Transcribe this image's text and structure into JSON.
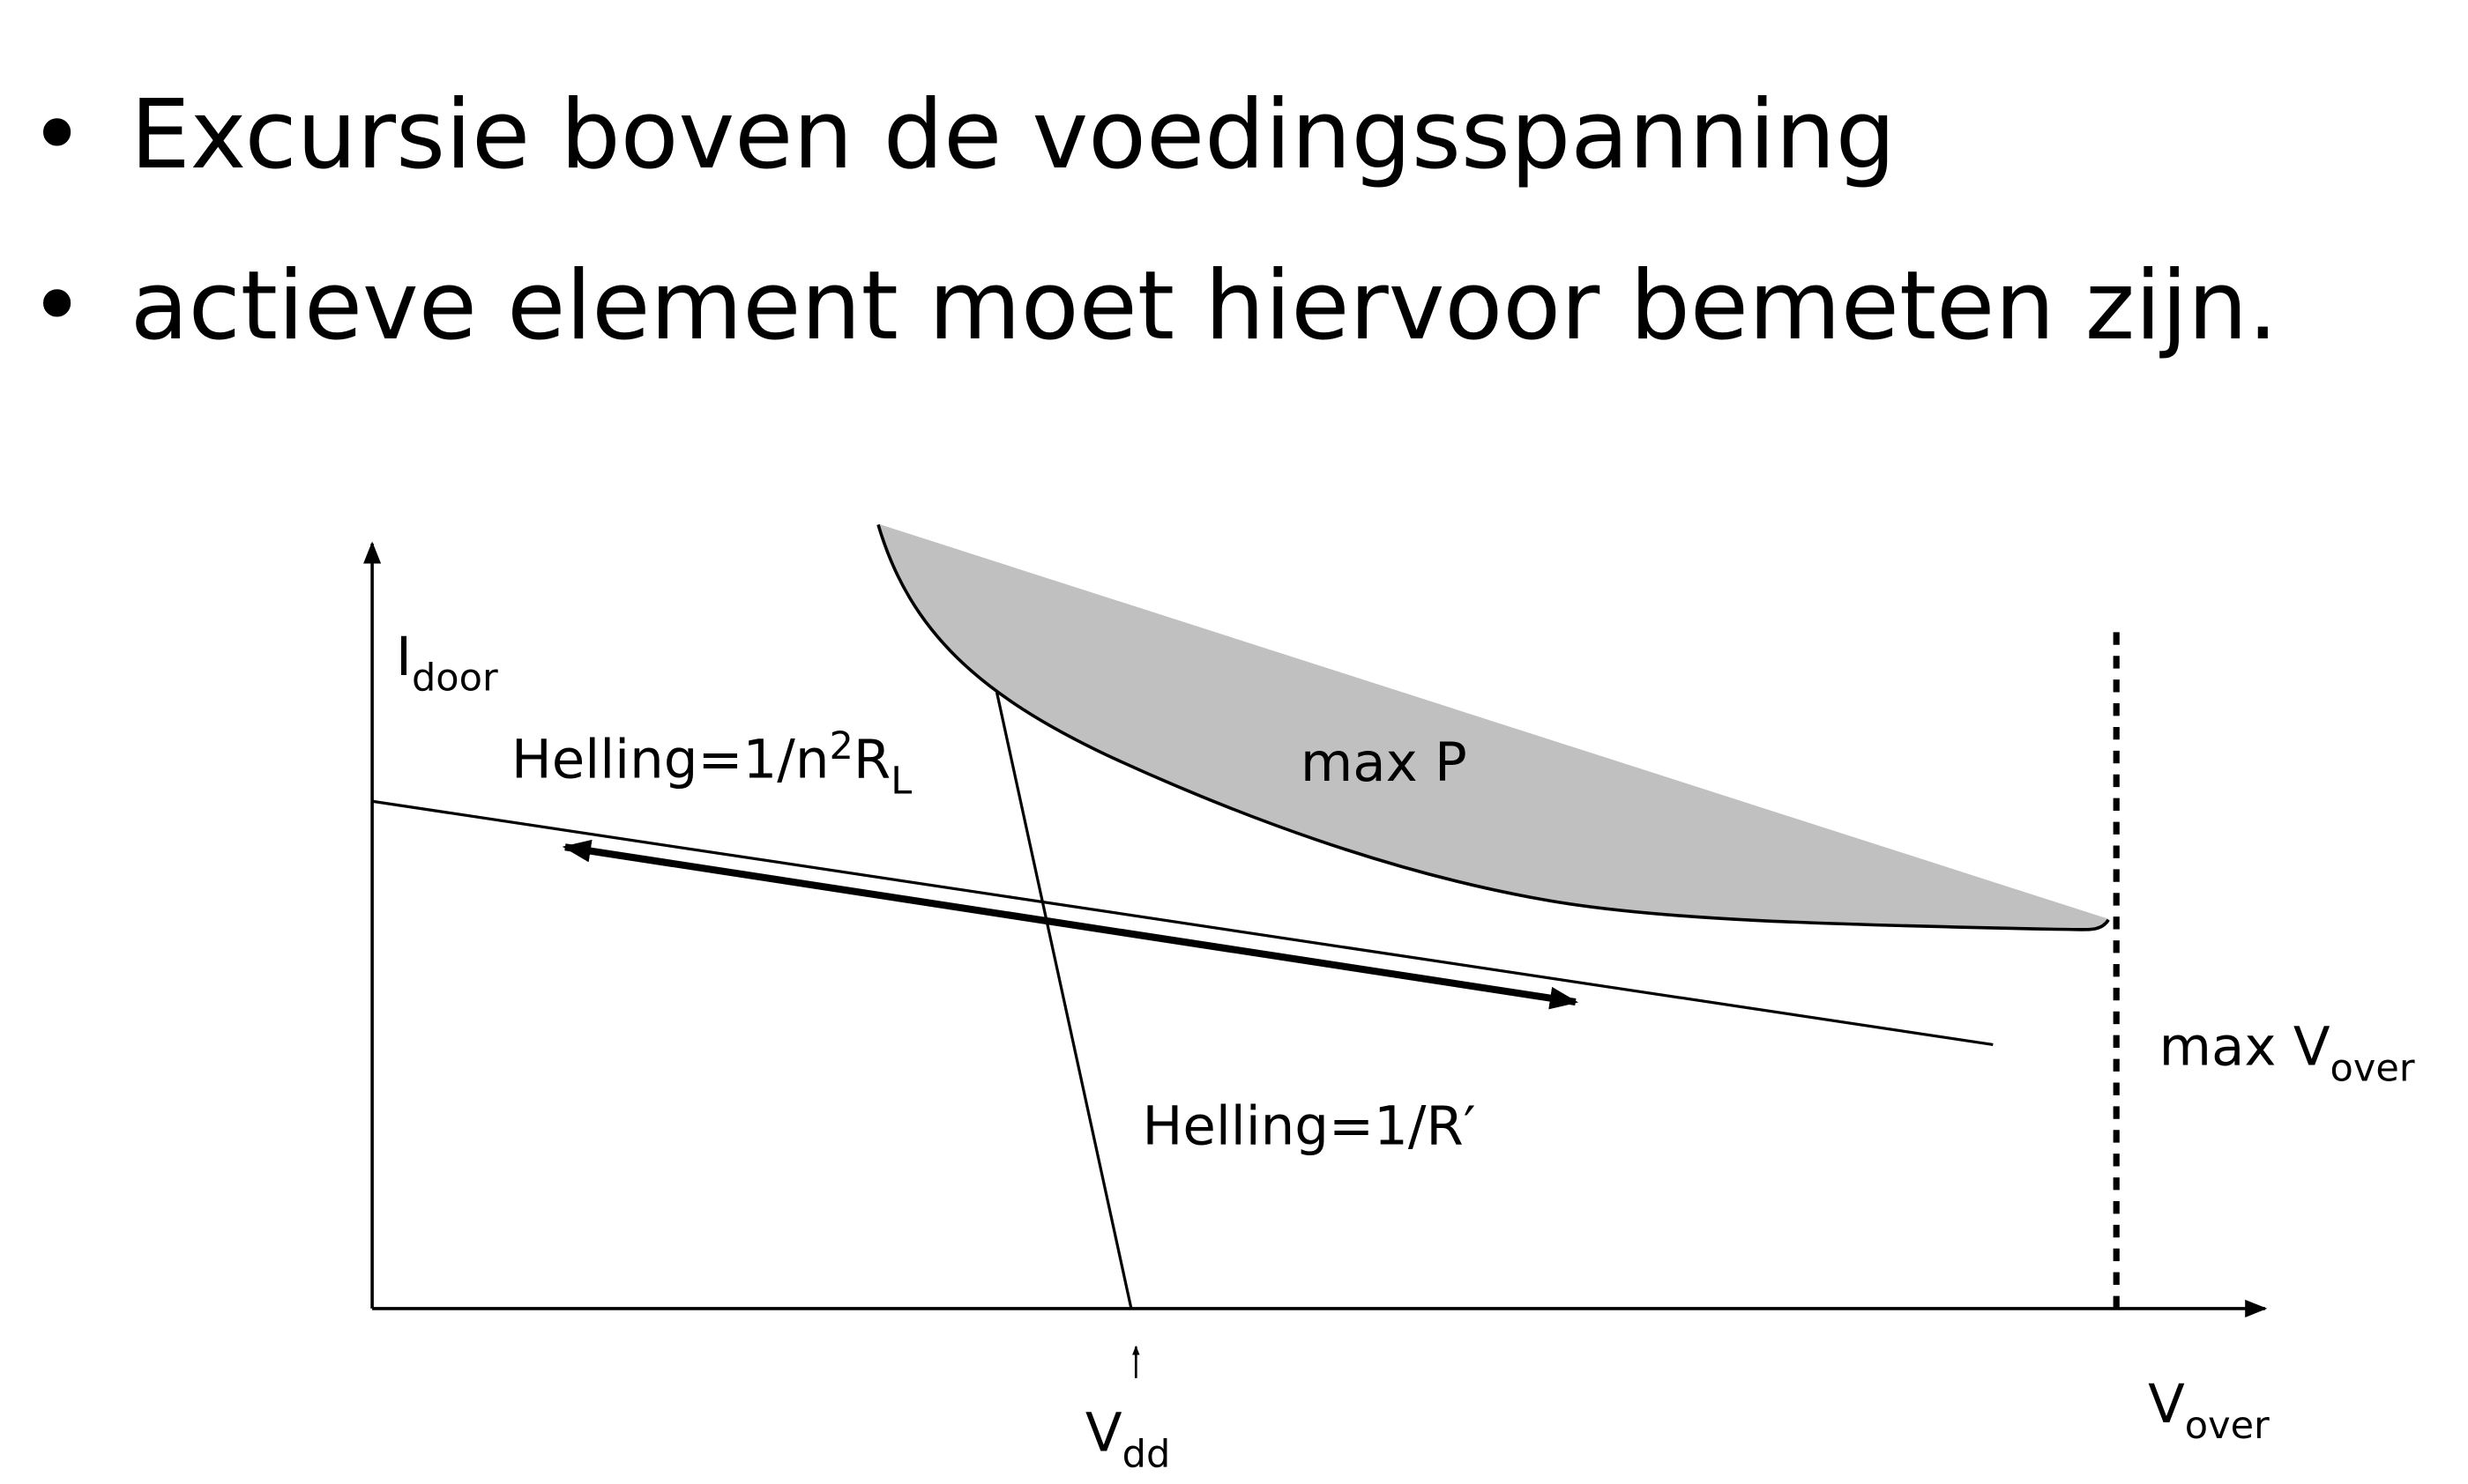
{
  "bullets": [
    "Excursie boven de voedingsspanning",
    "actieve element moet hiervoor bemeten zijn."
  ],
  "bullet_symbol": "•",
  "diagram": {
    "y_axis_label": {
      "main": "I",
      "sub": "door"
    },
    "x_axis_label": {
      "main": "V",
      "sub": "over"
    },
    "load_line_label": {
      "main": "Helling=1/n",
      "sup": "2",
      "main2": "R",
      "sub": "L"
    },
    "source_line_label": "Helling=1/R′",
    "region_label": "max P",
    "limit_label": {
      "main": "max V",
      "sub": "over"
    },
    "vdd_label": {
      "main": "V",
      "sub": "dd"
    },
    "region_fill_color": "#c0c0c0"
  }
}
